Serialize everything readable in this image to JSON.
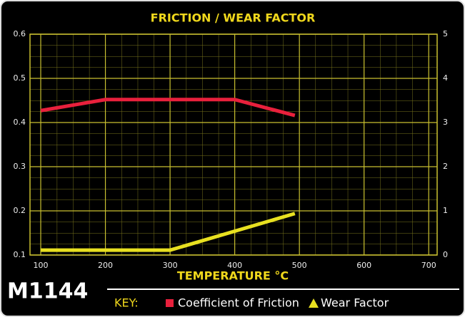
{
  "chart_data": {
    "type": "line",
    "title": "FRICTION / WEAR FACTOR",
    "x_label": "TEMPERATURE °C",
    "model": "M1144",
    "key_label": "KEY:",
    "series": [
      {
        "name": "Coefficient of Friction",
        "color": "#e8203c",
        "x": [
          100,
          200,
          400,
          493
        ],
        "values": [
          0.427,
          0.452,
          0.452,
          0.416
        ]
      },
      {
        "name": "Wear Factor",
        "color": "#e8e020",
        "axis": "y2",
        "x": [
          100,
          300,
          493
        ],
        "values": [
          0.11,
          0.11,
          0.94
        ]
      }
    ],
    "xlim": [
      83.4,
      713
    ],
    "xticks": [
      100,
      200,
      300,
      400,
      500,
      600,
      700
    ],
    "ylim": [
      0.1,
      0.6
    ],
    "yticks": [
      0.1,
      0.2,
      0.3,
      0.4,
      0.5,
      0.6
    ],
    "y2lim": [
      0,
      5
    ],
    "y2ticks": [
      0,
      1,
      2,
      3,
      4,
      5
    ],
    "grid": true
  }
}
